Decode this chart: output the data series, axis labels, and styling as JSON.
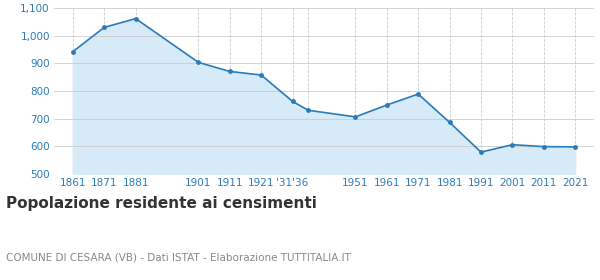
{
  "x_years": [
    1861,
    1871,
    1881,
    1901,
    1911,
    1921,
    1931,
    1936,
    1951,
    1961,
    1971,
    1981,
    1991,
    2001,
    2011,
    2021
  ],
  "x_labels": [
    "1861",
    "1871",
    "1881",
    "1901",
    "1911",
    "1921",
    "'31'36",
    "",
    "1951",
    "1961",
    "1971",
    "1981",
    "1991",
    "2001",
    "2011",
    "2021"
  ],
  "values": [
    943,
    1031,
    1063,
    904,
    871,
    858,
    762,
    730,
    706,
    749,
    789,
    686,
    578,
    605,
    598,
    597
  ],
  "line_color": "#2b7bb9",
  "fill_color": "#d6eaf8",
  "marker_color": "#2b7bb9",
  "bg_color": "#ffffff",
  "grid_color": "#cccccc",
  "ylim": [
    500,
    1100
  ],
  "yticks": [
    500,
    600,
    700,
    800,
    900,
    1000,
    1100
  ],
  "ytick_labels": [
    "500",
    "600",
    "700",
    "800",
    "900",
    "1,000",
    "1,100"
  ],
  "title": "Popolazione residente ai censimenti",
  "subtitle": "COMUNE DI CESARA (VB) - Dati ISTAT - Elaborazione TUTTITALIA.IT",
  "title_color": "#333333",
  "subtitle_color": "#888888",
  "axis_label_color": "#2b7bb9",
  "tick_label_size": 7.5,
  "title_size": 11,
  "subtitle_size": 7.5
}
